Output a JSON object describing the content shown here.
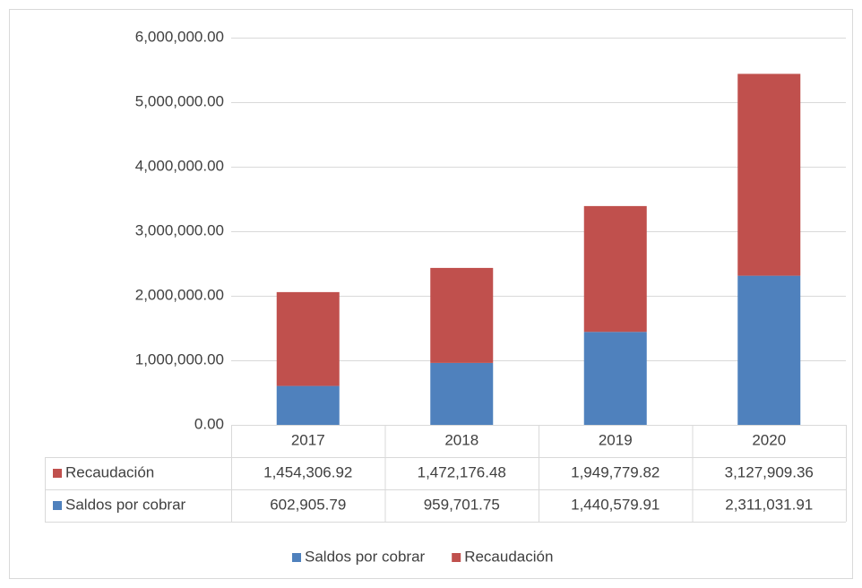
{
  "chart_data": {
    "type": "stacked_bar",
    "categories": [
      "2017",
      "2018",
      "2019",
      "2020"
    ],
    "series": [
      {
        "name": "Saldos por cobrar",
        "color": "#4f81bd",
        "values": [
          602905.79,
          959701.75,
          1440579.91,
          2311031.91
        ],
        "value_labels": [
          "602,905.79",
          "959,701.75",
          "1,440,579.91",
          "2,311,031.91"
        ]
      },
      {
        "name": "Recaudación",
        "color": "#c0504d",
        "values": [
          1454306.92,
          1472176.48,
          1949779.82,
          3127909.36
        ],
        "value_labels": [
          "1,454,306.92",
          "1,472,176.48",
          "1,949,779.82",
          "3,127,909.36"
        ]
      }
    ],
    "ylim": [
      0,
      6000000
    ],
    "yticks": [
      {
        "value": 0,
        "label": "0.00"
      },
      {
        "value": 1000000,
        "label": "1,000,000.00"
      },
      {
        "value": 2000000,
        "label": "2,000,000.00"
      },
      {
        "value": 3000000,
        "label": "3,000,000.00"
      },
      {
        "value": 4000000,
        "label": "4,000,000.00"
      },
      {
        "value": 5000000,
        "label": "5,000,000.00"
      },
      {
        "value": 6000000,
        "label": "6,000,000.00"
      }
    ],
    "grid": true,
    "legend": "bottom",
    "data_table": true
  }
}
